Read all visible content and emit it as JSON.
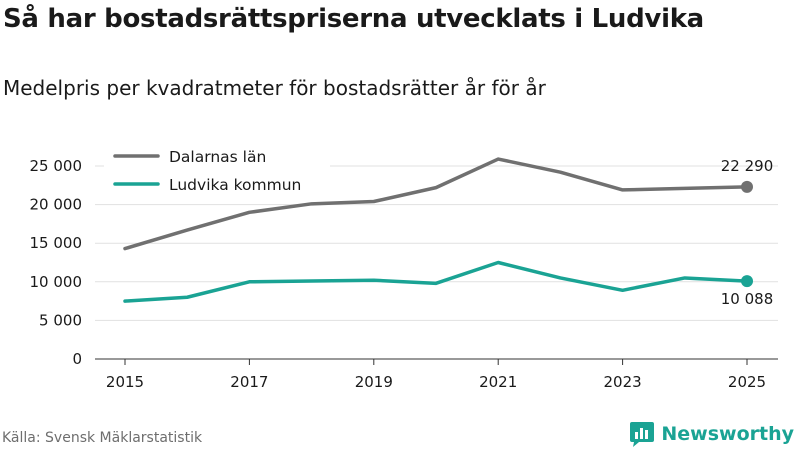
{
  "header": {
    "title": "Så har bostadsrättspriserna utvecklats i Ludvika",
    "subtitle": "Medelpris per kvadratmeter för bostadsrätter år för år"
  },
  "footer": {
    "source": "Källa: Svensk Mäklarstatistik",
    "brand": "Newsworthy"
  },
  "colors": {
    "dalarna": "#707070",
    "ludvika": "#1aa394",
    "grid": "#e1e1e1",
    "axis": "#333333"
  },
  "chart_data": {
    "type": "line",
    "title": "Så har bostadsrättspriserna utvecklats i Ludvika",
    "subtitle": "Medelpris per kvadratmeter för bostadsrätter år för år",
    "xlabel": "",
    "ylabel": "",
    "x": [
      2015,
      2016,
      2017,
      2018,
      2019,
      2020,
      2021,
      2022,
      2023,
      2024,
      2025
    ],
    "xlim": [
      2015,
      2025
    ],
    "ylim": [
      0,
      25000
    ],
    "x_ticks": [
      2015,
      2017,
      2019,
      2021,
      2023,
      2025
    ],
    "x_tick_labels": [
      "2015",
      "2017",
      "2019",
      "2021",
      "2023",
      "2025"
    ],
    "y_ticks": [
      0,
      5000,
      10000,
      15000,
      20000,
      25000
    ],
    "y_tick_labels": [
      "0",
      "5 000",
      "10 000",
      "15 000",
      "20 000",
      "25 000"
    ],
    "grid": true,
    "legend_position": "top-left",
    "series": [
      {
        "key": "dalarna",
        "name": "Dalarnas län",
        "color": "#707070",
        "values": [
          14300,
          16700,
          19000,
          20100,
          20400,
          22200,
          25900,
          24200,
          21900,
          22100,
          22290
        ],
        "end_label": "22 290",
        "end_label_position": "above"
      },
      {
        "key": "ludvika",
        "name": "Ludvika kommun",
        "color": "#1aa394",
        "values": [
          7500,
          8000,
          10000,
          10100,
          10200,
          9800,
          12500,
          10500,
          8900,
          10500,
          10088
        ],
        "end_label": "10 088",
        "end_label_position": "below"
      }
    ]
  }
}
